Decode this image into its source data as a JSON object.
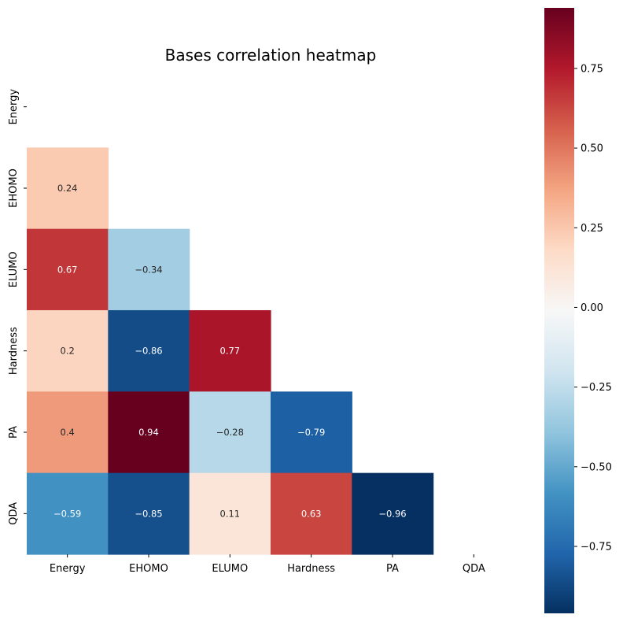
{
  "chart_data": {
    "type": "heatmap",
    "title": "Bases correlation heatmap",
    "xlabel": "",
    "ylabel": "",
    "x_categories": [
      "Energy",
      "EHOMO",
      "ELUMO",
      "Hardness",
      "PA",
      "QDA"
    ],
    "y_categories": [
      "Energy",
      "EHOMO",
      "ELUMO",
      "Hardness",
      "PA",
      "QDA"
    ],
    "mask": "upper-triangle-including-diagonal",
    "values": [
      [
        null,
        null,
        null,
        null,
        null,
        null
      ],
      [
        0.24,
        null,
        null,
        null,
        null,
        null
      ],
      [
        0.67,
        -0.34,
        null,
        null,
        null,
        null
      ],
      [
        0.2,
        -0.86,
        0.77,
        null,
        null,
        null
      ],
      [
        0.4,
        0.94,
        -0.28,
        -0.79,
        null,
        null
      ],
      [
        -0.59,
        -0.85,
        0.11,
        0.63,
        -0.96,
        null
      ]
    ],
    "colormap": "RdBu_r",
    "color_range": [
      -0.96,
      0.94
    ],
    "colorbar": {
      "ticks": [
        0.75,
        0.5,
        0.25,
        0.0,
        -0.25,
        -0.5,
        -0.75
      ],
      "tick_labels": [
        "0.75",
        "0.50",
        "0.25",
        "0.00",
        "−0.25",
        "−0.50",
        "−0.75"
      ]
    },
    "annotations": true,
    "grid": false
  }
}
